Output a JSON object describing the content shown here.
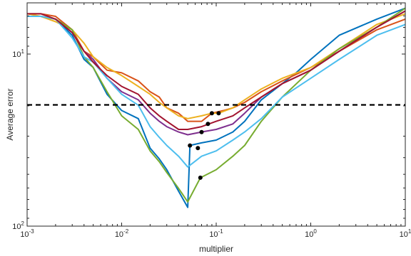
{
  "chart_data": {
    "type": "line",
    "title": "",
    "xlabel": "multiplier",
    "ylabel": "Average error",
    "xscale": "log",
    "yscale": "log",
    "xlim": [
      0.001,
      10
    ],
    "xlim_label": "10^-3 to 10^1",
    "ylim_note": "y axis from 10^2 (bottom) to about 10^1 (upper part)",
    "x_ticks": [
      {
        "base": "10",
        "exp": "-3",
        "value": 0.001
      },
      {
        "base": "10",
        "exp": "-2",
        "value": 0.01
      },
      {
        "base": "10",
        "exp": "-1",
        "value": 0.1
      },
      {
        "base": "10",
        "exp": "0",
        "value": 1
      },
      {
        "base": "10",
        "exp": "1",
        "value": 10
      }
    ],
    "y_ticks": [
      {
        "base": "10",
        "exp": "1",
        "level": 0.0
      },
      {
        "base": "10",
        "exp": "2",
        "level": 1.0
      }
    ],
    "reference_line": {
      "style": "dashed",
      "color": "#000000",
      "level": 0.2955
    },
    "colors": [
      "#0072BD",
      "#D95319",
      "#EDB120",
      "#7E2F8E",
      "#77AC30",
      "#4DBEEE",
      "#A2142F"
    ],
    "series": [
      {
        "color": "#0072BD",
        "minimum": [
          0.0528,
          0.5312
        ],
        "points": [
          [
            0.001,
            -0.219
          ],
          [
            0.0014,
            -0.219
          ],
          [
            0.002,
            -0.203
          ],
          [
            0.003,
            -0.109
          ],
          [
            0.004,
            0.031
          ],
          [
            0.005,
            0.078
          ],
          [
            0.007,
            0.234
          ],
          [
            0.01,
            0.328
          ],
          [
            0.015,
            0.375
          ],
          [
            0.02,
            0.547
          ],
          [
            0.025,
            0.609
          ],
          [
            0.03,
            0.672
          ],
          [
            0.04,
            0.797
          ],
          [
            0.05,
            0.891
          ],
          [
            0.0528,
            0.531
          ],
          [
            0.07,
            0.516
          ],
          [
            0.1,
            0.5
          ],
          [
            0.15,
            0.453
          ],
          [
            0.2,
            0.391
          ],
          [
            0.3,
            0.266
          ],
          [
            0.5,
            0.172
          ],
          [
            0.7,
            0.109
          ],
          [
            1,
            0.031
          ],
          [
            2,
            -0.109
          ],
          [
            5,
            -0.203
          ],
          [
            10,
            -0.266
          ]
        ]
      },
      {
        "color": "#D95319",
        "minimum": [
          0.09,
          0.3438
        ],
        "points": [
          [
            0.001,
            -0.234
          ],
          [
            0.0014,
            -0.234
          ],
          [
            0.002,
            -0.219
          ],
          [
            0.003,
            -0.141
          ],
          [
            0.004,
            -0.016
          ],
          [
            0.005,
            0.016
          ],
          [
            0.007,
            0.094
          ],
          [
            0.01,
            0.109
          ],
          [
            0.015,
            0.156
          ],
          [
            0.02,
            0.219
          ],
          [
            0.025,
            0.25
          ],
          [
            0.03,
            0.313
          ],
          [
            0.04,
            0.344
          ],
          [
            0.05,
            0.391
          ],
          [
            0.07,
            0.391
          ],
          [
            0.09,
            0.344
          ],
          [
            0.12,
            0.328
          ],
          [
            0.15,
            0.313
          ],
          [
            0.2,
            0.281
          ],
          [
            0.3,
            0.219
          ],
          [
            0.5,
            0.156
          ],
          [
            1,
            0.078
          ],
          [
            2,
            -0.016
          ],
          [
            5,
            -0.141
          ],
          [
            10,
            -0.203
          ]
        ]
      },
      {
        "color": "#EDB120",
        "minimum": [
          0.106,
          0.3438
        ],
        "points": [
          [
            0.001,
            -0.234
          ],
          [
            0.0014,
            -0.219
          ],
          [
            0.002,
            -0.188
          ],
          [
            0.003,
            -0.141
          ],
          [
            0.004,
            -0.063
          ],
          [
            0.005,
            0.016
          ],
          [
            0.007,
            0.078
          ],
          [
            0.01,
            0.125
          ],
          [
            0.015,
            0.188
          ],
          [
            0.02,
            0.234
          ],
          [
            0.025,
            0.281
          ],
          [
            0.03,
            0.313
          ],
          [
            0.04,
            0.359
          ],
          [
            0.05,
            0.375
          ],
          [
            0.07,
            0.359
          ],
          [
            0.09,
            0.344
          ],
          [
            0.106,
            0.344
          ],
          [
            0.15,
            0.313
          ],
          [
            0.2,
            0.266
          ],
          [
            0.3,
            0.203
          ],
          [
            0.5,
            0.141
          ],
          [
            1,
            0.078
          ],
          [
            2,
            -0.031
          ],
          [
            5,
            -0.172
          ],
          [
            10,
            -0.234
          ]
        ]
      },
      {
        "color": "#7E2F8E",
        "minimum": [
          0.07,
          0.4531
        ],
        "points": [
          [
            0.001,
            -0.219
          ],
          [
            0.0014,
            -0.219
          ],
          [
            0.002,
            -0.203
          ],
          [
            0.003,
            -0.125
          ],
          [
            0.004,
            -0.016
          ],
          [
            0.005,
            0.031
          ],
          [
            0.007,
            0.141
          ],
          [
            0.01,
            0.219
          ],
          [
            0.015,
            0.266
          ],
          [
            0.02,
            0.344
          ],
          [
            0.025,
            0.391
          ],
          [
            0.03,
            0.422
          ],
          [
            0.04,
            0.453
          ],
          [
            0.05,
            0.469
          ],
          [
            0.07,
            0.453
          ],
          [
            0.1,
            0.438
          ],
          [
            0.15,
            0.406
          ],
          [
            0.2,
            0.344
          ],
          [
            0.3,
            0.25
          ],
          [
            0.5,
            0.172
          ],
          [
            1,
            0.094
          ],
          [
            2,
            -0.016
          ],
          [
            5,
            -0.156
          ],
          [
            10,
            -0.25
          ]
        ]
      },
      {
        "color": "#77AC30",
        "minimum": [
          0.068,
          0.7188
        ],
        "points": [
          [
            0.001,
            -0.219
          ],
          [
            0.0014,
            -0.219
          ],
          [
            0.002,
            -0.203
          ],
          [
            0.003,
            -0.141
          ],
          [
            0.004,
            0.016
          ],
          [
            0.005,
            0.078
          ],
          [
            0.007,
            0.219
          ],
          [
            0.01,
            0.359
          ],
          [
            0.015,
            0.438
          ],
          [
            0.02,
            0.563
          ],
          [
            0.025,
            0.625
          ],
          [
            0.03,
            0.688
          ],
          [
            0.04,
            0.781
          ],
          [
            0.05,
            0.859
          ],
          [
            0.068,
            0.719
          ],
          [
            0.1,
            0.672
          ],
          [
            0.15,
            0.594
          ],
          [
            0.2,
            0.531
          ],
          [
            0.3,
            0.391
          ],
          [
            0.5,
            0.25
          ],
          [
            1,
            0.094
          ],
          [
            2,
            -0.031
          ],
          [
            5,
            -0.156
          ],
          [
            10,
            -0.266
          ]
        ]
      },
      {
        "color": "#4DBEEE",
        "minimum": [
          0.064,
          0.5469
        ],
        "points": [
          [
            0.001,
            -0.219
          ],
          [
            0.0014,
            -0.219
          ],
          [
            0.002,
            -0.203
          ],
          [
            0.003,
            -0.094
          ],
          [
            0.004,
            0.016
          ],
          [
            0.005,
            0.047
          ],
          [
            0.007,
            0.141
          ],
          [
            0.01,
            0.234
          ],
          [
            0.015,
            0.297
          ],
          [
            0.02,
            0.422
          ],
          [
            0.025,
            0.484
          ],
          [
            0.03,
            0.531
          ],
          [
            0.04,
            0.594
          ],
          [
            0.05,
            0.656
          ],
          [
            0.07,
            0.594
          ],
          [
            0.1,
            0.563
          ],
          [
            0.15,
            0.5
          ],
          [
            0.2,
            0.453
          ],
          [
            0.3,
            0.375
          ],
          [
            0.5,
            0.25
          ],
          [
            1,
            0.141
          ],
          [
            2,
            0.031
          ],
          [
            5,
            -0.109
          ],
          [
            10,
            -0.172
          ]
        ]
      },
      {
        "color": "#A2142F",
        "minimum": [
          0.0818,
          0.4063
        ],
        "points": [
          [
            0.001,
            -0.234
          ],
          [
            0.0014,
            -0.234
          ],
          [
            0.002,
            -0.203
          ],
          [
            0.003,
            -0.125
          ],
          [
            0.004,
            -0.016
          ],
          [
            0.005,
            0.047
          ],
          [
            0.007,
            0.125
          ],
          [
            0.01,
            0.188
          ],
          [
            0.015,
            0.234
          ],
          [
            0.02,
            0.313
          ],
          [
            0.025,
            0.359
          ],
          [
            0.03,
            0.391
          ],
          [
            0.04,
            0.438
          ],
          [
            0.05,
            0.438
          ],
          [
            0.07,
            0.422
          ],
          [
            0.1,
            0.391
          ],
          [
            0.15,
            0.359
          ],
          [
            0.2,
            0.313
          ],
          [
            0.3,
            0.25
          ],
          [
            0.5,
            0.172
          ],
          [
            1,
            0.094
          ],
          [
            2,
            -0.016
          ],
          [
            5,
            -0.156
          ],
          [
            10,
            -0.25
          ]
        ]
      }
    ]
  }
}
